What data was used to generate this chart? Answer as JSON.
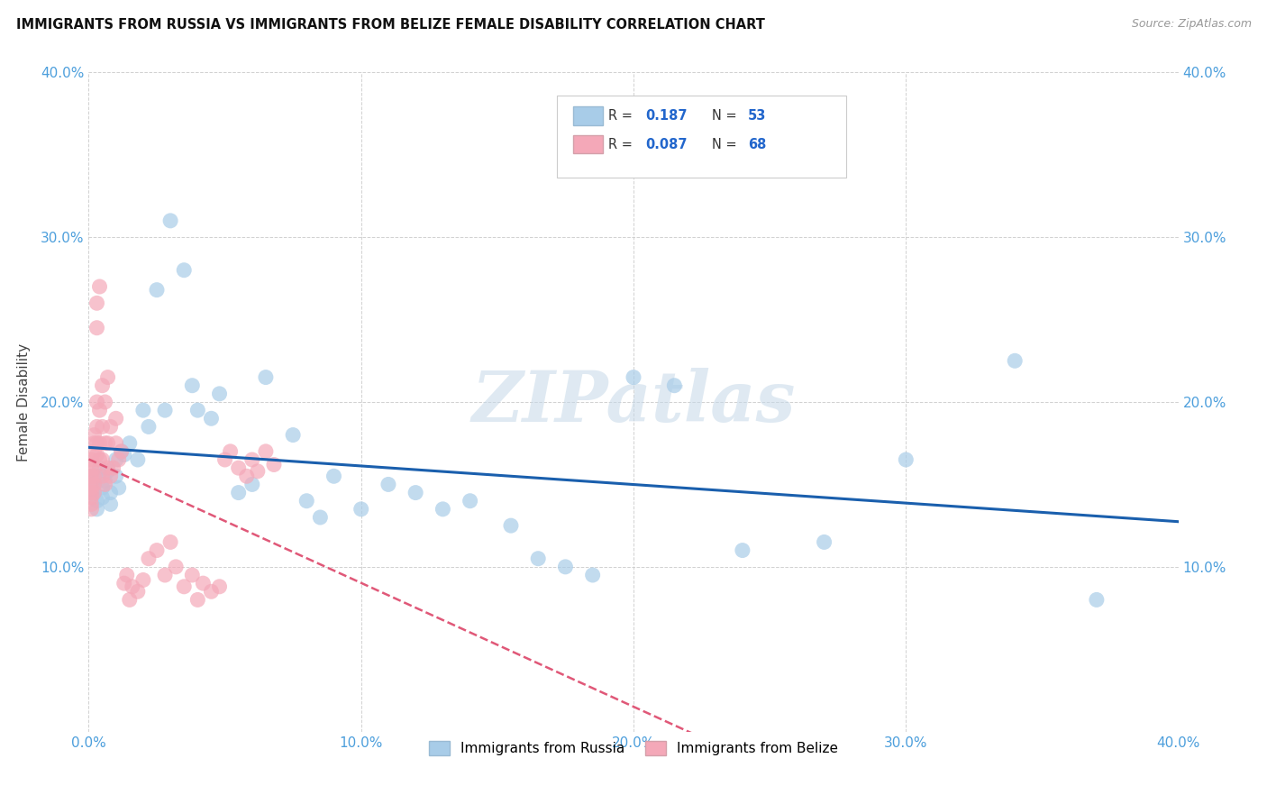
{
  "title": "IMMIGRANTS FROM RUSSIA VS IMMIGRANTS FROM BELIZE FEMALE DISABILITY CORRELATION CHART",
  "source": "Source: ZipAtlas.com",
  "ylabel": "Female Disability",
  "xlim": [
    0.0,
    0.4
  ],
  "ylim": [
    0.0,
    0.4
  ],
  "xticks": [
    0.0,
    0.1,
    0.2,
    0.3,
    0.4
  ],
  "yticks": [
    0.1,
    0.2,
    0.3,
    0.4
  ],
  "xtick_labels": [
    "0.0%",
    "10.0%",
    "20.0%",
    "30.0%",
    "40.0%"
  ],
  "ytick_labels": [
    "10.0%",
    "20.0%",
    "30.0%",
    "40.0%"
  ],
  "legend_label1": "Immigrants from Russia",
  "legend_label2": "Immigrants from Belize",
  "R1": 0.187,
  "N1": 53,
  "R2": 0.087,
  "N2": 68,
  "color1": "#a8cce8",
  "color2": "#f4a8b8",
  "trend1_color": "#1a5fad",
  "trend2_color": "#e05878",
  "watermark": "ZIPatlas",
  "russia_x": [
    0.001,
    0.002,
    0.002,
    0.003,
    0.003,
    0.004,
    0.004,
    0.005,
    0.005,
    0.006,
    0.007,
    0.008,
    0.008,
    0.01,
    0.01,
    0.011,
    0.012,
    0.013,
    0.015,
    0.018,
    0.02,
    0.022,
    0.025,
    0.028,
    0.03,
    0.035,
    0.038,
    0.04,
    0.045,
    0.048,
    0.055,
    0.06,
    0.065,
    0.075,
    0.08,
    0.085,
    0.09,
    0.1,
    0.11,
    0.12,
    0.13,
    0.14,
    0.155,
    0.165,
    0.175,
    0.185,
    0.2,
    0.215,
    0.24,
    0.27,
    0.3,
    0.34,
    0.37
  ],
  "russia_y": [
    0.155,
    0.15,
    0.145,
    0.14,
    0.135,
    0.16,
    0.155,
    0.148,
    0.142,
    0.152,
    0.158,
    0.145,
    0.138,
    0.165,
    0.155,
    0.148,
    0.17,
    0.168,
    0.175,
    0.165,
    0.195,
    0.185,
    0.268,
    0.195,
    0.31,
    0.28,
    0.21,
    0.195,
    0.19,
    0.205,
    0.145,
    0.15,
    0.215,
    0.18,
    0.14,
    0.13,
    0.155,
    0.135,
    0.15,
    0.145,
    0.135,
    0.14,
    0.125,
    0.105,
    0.1,
    0.095,
    0.215,
    0.21,
    0.11,
    0.115,
    0.165,
    0.225,
    0.08
  ],
  "belize_x": [
    0.001,
    0.001,
    0.001,
    0.001,
    0.001,
    0.001,
    0.001,
    0.001,
    0.001,
    0.002,
    0.002,
    0.002,
    0.002,
    0.002,
    0.002,
    0.002,
    0.003,
    0.003,
    0.003,
    0.003,
    0.003,
    0.003,
    0.004,
    0.004,
    0.004,
    0.004,
    0.005,
    0.005,
    0.005,
    0.005,
    0.006,
    0.006,
    0.006,
    0.007,
    0.007,
    0.007,
    0.008,
    0.008,
    0.009,
    0.01,
    0.01,
    0.011,
    0.012,
    0.013,
    0.014,
    0.015,
    0.016,
    0.018,
    0.02,
    0.022,
    0.025,
    0.028,
    0.03,
    0.032,
    0.035,
    0.038,
    0.04,
    0.042,
    0.045,
    0.048,
    0.05,
    0.052,
    0.055,
    0.058,
    0.06,
    0.062,
    0.065,
    0.068
  ],
  "belize_y": [
    0.155,
    0.152,
    0.148,
    0.145,
    0.142,
    0.138,
    0.135,
    0.16,
    0.165,
    0.17,
    0.155,
    0.15,
    0.145,
    0.16,
    0.175,
    0.18,
    0.168,
    0.185,
    0.175,
    0.26,
    0.2,
    0.245,
    0.165,
    0.175,
    0.195,
    0.27,
    0.155,
    0.165,
    0.185,
    0.21,
    0.15,
    0.175,
    0.2,
    0.16,
    0.175,
    0.215,
    0.155,
    0.185,
    0.16,
    0.175,
    0.19,
    0.165,
    0.17,
    0.09,
    0.095,
    0.08,
    0.088,
    0.085,
    0.092,
    0.105,
    0.11,
    0.095,
    0.115,
    0.1,
    0.088,
    0.095,
    0.08,
    0.09,
    0.085,
    0.088,
    0.165,
    0.17,
    0.16,
    0.155,
    0.165,
    0.158,
    0.17,
    0.162
  ]
}
